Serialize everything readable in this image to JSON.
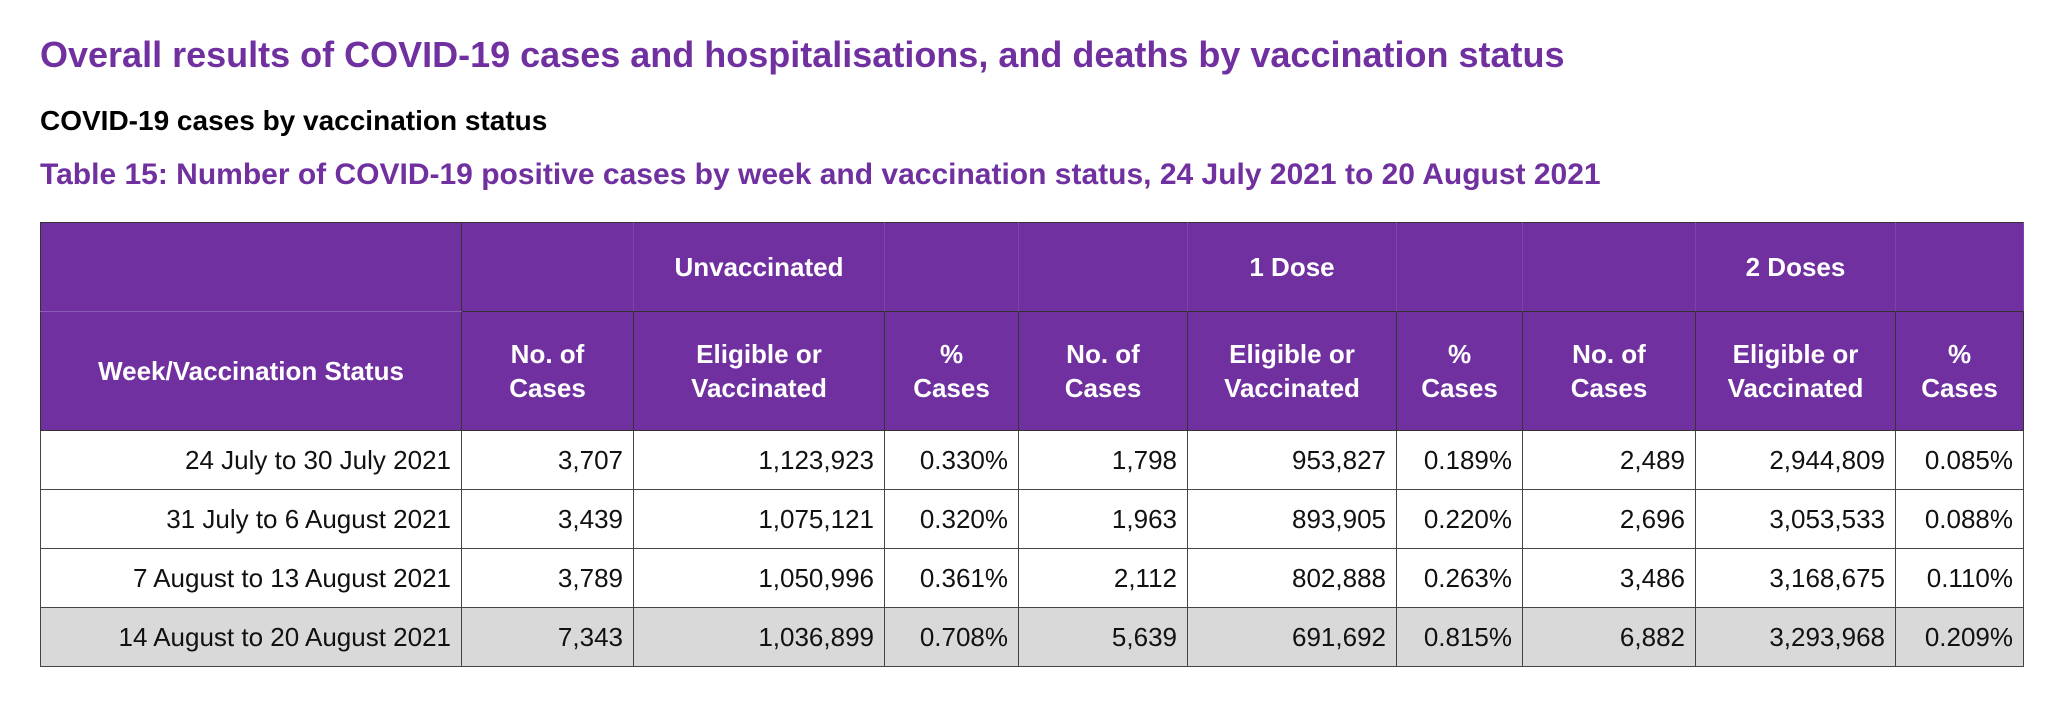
{
  "title": "Overall results of COVID-19 cases and hospitalisations, and deaths by vaccination status",
  "subtitle": "COVID-19 cases by vaccination status",
  "caption": "Table 15: Number of COVID-19 positive cases by week and vaccination status, 24 July 2021 to 20 August 2021",
  "colors": {
    "header_bg": "#7030a0",
    "highlight_row_bg": "#d9d9d9"
  },
  "table": {
    "groups": [
      "Unvaccinated",
      "1 Dose",
      "2 Doses"
    ],
    "first_header": "Week/Vaccination Status",
    "sub_headers": [
      [
        "No. of",
        "Cases"
      ],
      [
        "Eligible or",
        "Vaccinated"
      ],
      [
        "%",
        "Cases"
      ]
    ],
    "rows": [
      [
        "24 July to 30 July 2021",
        "3,707",
        "1,123,923",
        "0.330%",
        "1,798",
        "953,827",
        "0.189%",
        "2,489",
        "2,944,809",
        "0.085%"
      ],
      [
        "31 July to 6 August 2021",
        "3,439",
        "1,075,121",
        "0.320%",
        "1,963",
        "893,905",
        "0.220%",
        "2,696",
        "3,053,533",
        "0.088%"
      ],
      [
        "7 August to 13 August 2021",
        "3,789",
        "1,050,996",
        "0.361%",
        "2,112",
        "802,888",
        "0.263%",
        "3,486",
        "3,168,675",
        "0.110%"
      ],
      [
        "14 August to 20 August 2021",
        "7,343",
        "1,036,899",
        "0.708%",
        "5,639",
        "691,692",
        "0.815%",
        "6,882",
        "3,293,968",
        "0.209%"
      ]
    ]
  }
}
